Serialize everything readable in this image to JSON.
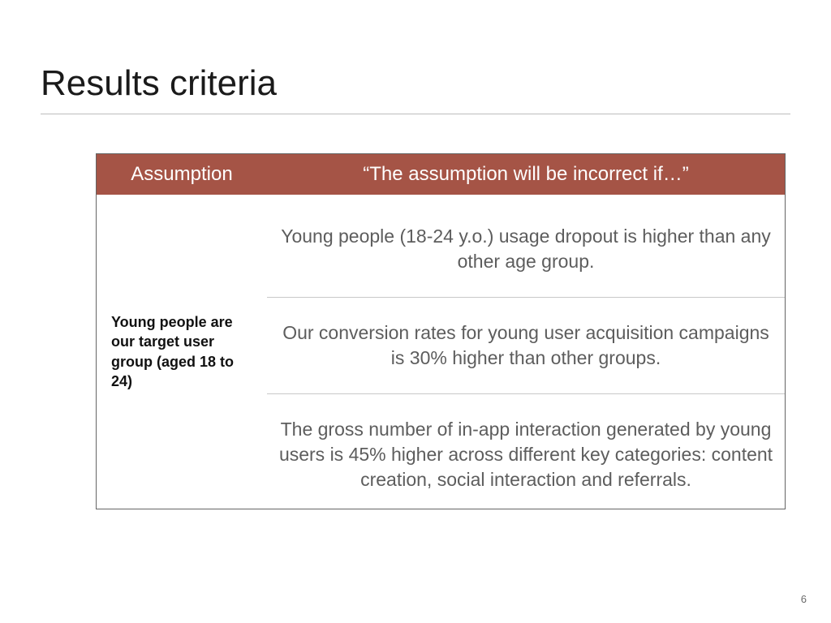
{
  "slide": {
    "title": "Results criteria",
    "page_number": "6"
  },
  "table": {
    "header_bg": "#a55446",
    "header_fg": "#ffffff",
    "border_color": "#656565",
    "divider_color": "#c8c8c8",
    "body_text_color": "#5d5d5d",
    "columns": {
      "a": "Assumption",
      "b": "“The assumption will be incorrect if…”"
    },
    "assumption": "Young people are our target user group (aged 18 to 24)",
    "criteria": [
      "Young people (18-24 y.o.) usage dropout is higher than any other age group.",
      "Our conversion rates for young user acquisition campaigns is 30% higher than other groups.",
      "The gross number of in-app interaction generated by young users is 45% higher across different key categories: content creation, social interaction and referrals."
    ]
  }
}
